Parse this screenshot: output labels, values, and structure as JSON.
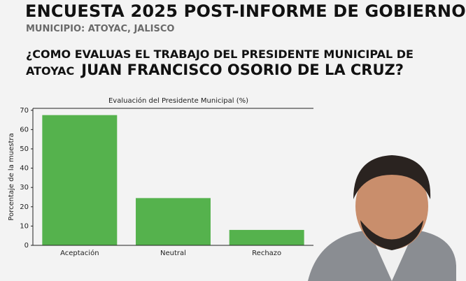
{
  "header": {
    "title": "ENCUESTA 2025 POST-INFORME DE GOBIERNO",
    "subtitle": "MUNICIPIO: ATOYAC, JALISCO"
  },
  "question": {
    "line1": "¿COMO EVALUAS EL TRABAJO DEL PRESIDENTE MUNICIPAL DE",
    "place": "ATOYAC",
    "name": "JUAN FRANCISCO OSORIO DE LA CRUZ?"
  },
  "chart_data": {
    "type": "bar",
    "title": "Evaluación del Presidente Municipal (%)",
    "y_label": "Porcentaje de la muestra",
    "categories": [
      "Aceptación",
      "Neutral",
      "Rechazo"
    ],
    "values": [
      67.5,
      24.5,
      8
    ],
    "color": "#55b24d",
    "ylim": [
      0,
      71
    ],
    "yticks": [
      0,
      10,
      20,
      30,
      40,
      50,
      60,
      70
    ],
    "grid": false
  }
}
